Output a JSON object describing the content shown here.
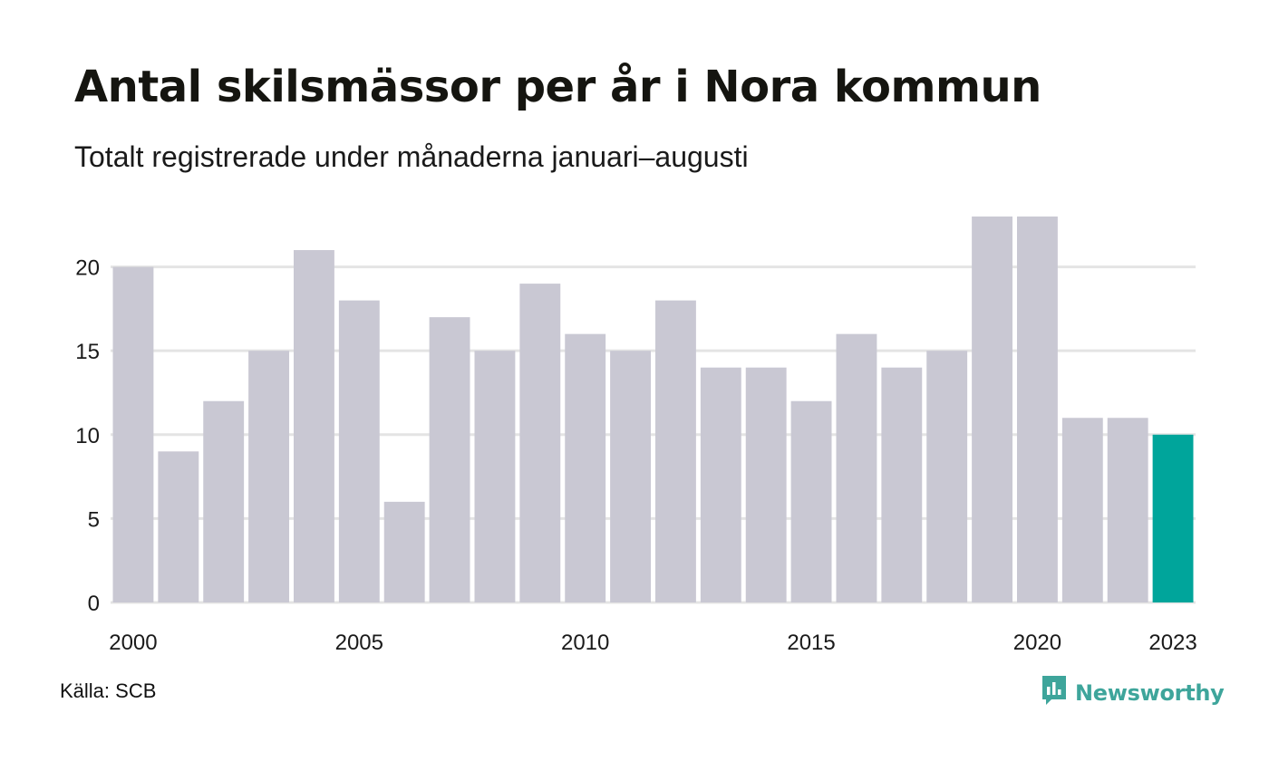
{
  "title": "Antal skilsmässor per år i Nora kommun",
  "subtitle": "Totalt registrerade under månaderna januari–augusti",
  "source": "Källa: SCB",
  "brand": {
    "name": "Newsworthy",
    "icon": "newsworthy-logo-icon"
  },
  "colors": {
    "bar": "#c9c8d3",
    "highlight": "#00a59b",
    "grid": "#e4e4e4",
    "brand": "#3ea59b"
  },
  "chart_data": {
    "type": "bar",
    "categories": [
      "2000",
      "2001",
      "2002",
      "2003",
      "2004",
      "2005",
      "2006",
      "2007",
      "2008",
      "2009",
      "2010",
      "2011",
      "2012",
      "2013",
      "2014",
      "2015",
      "2016",
      "2017",
      "2018",
      "2019",
      "2020",
      "2021",
      "2022",
      "2023"
    ],
    "values": [
      20,
      9,
      12,
      15,
      21,
      18,
      6,
      17,
      15,
      19,
      16,
      15,
      18,
      14,
      14,
      12,
      16,
      14,
      15,
      23,
      23,
      11,
      11,
      10
    ],
    "highlight": "2023",
    "x_tick_labels": [
      "2000",
      "2005",
      "2010",
      "2015",
      "2020",
      "2023"
    ],
    "y_ticks": [
      0,
      5,
      10,
      15,
      20
    ],
    "ylim": [
      0,
      23
    ],
    "grid": true,
    "xlabel": "",
    "ylabel": ""
  }
}
